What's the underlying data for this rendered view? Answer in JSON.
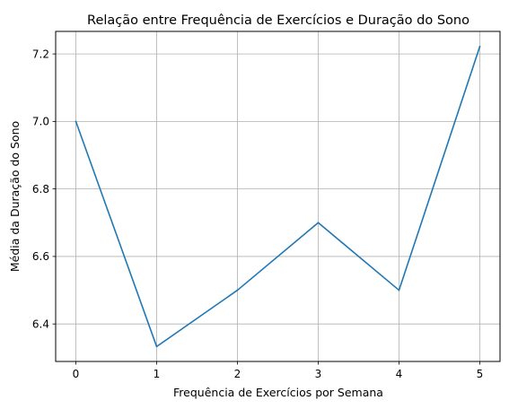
{
  "chart_data": {
    "type": "line",
    "title": "Relação entre Frequência de Exercícios e Duração do Sono",
    "xlabel": "Frequência de Exercícios por Semana",
    "ylabel": "Média da Duração do Sono",
    "x": [
      0,
      1,
      2,
      3,
      4,
      5
    ],
    "series": [
      {
        "values": [
          7.0,
          6.333,
          6.5,
          6.7,
          6.5,
          7.222
        ],
        "color": "#1f77b4"
      }
    ],
    "xticks": [
      0,
      1,
      2,
      3,
      4,
      5
    ],
    "yticks": [
      6.4,
      6.6,
      6.8,
      7.0,
      7.2
    ],
    "xtick_labels": [
      "0",
      "1",
      "2",
      "3",
      "4",
      "5"
    ],
    "ytick_labels": [
      "6.4",
      "6.6",
      "6.8",
      "7.0",
      "7.2"
    ],
    "xlim": [
      -0.25,
      5.25
    ],
    "ylim": [
      6.2889,
      7.2667
    ],
    "grid": true,
    "legend": false
  }
}
